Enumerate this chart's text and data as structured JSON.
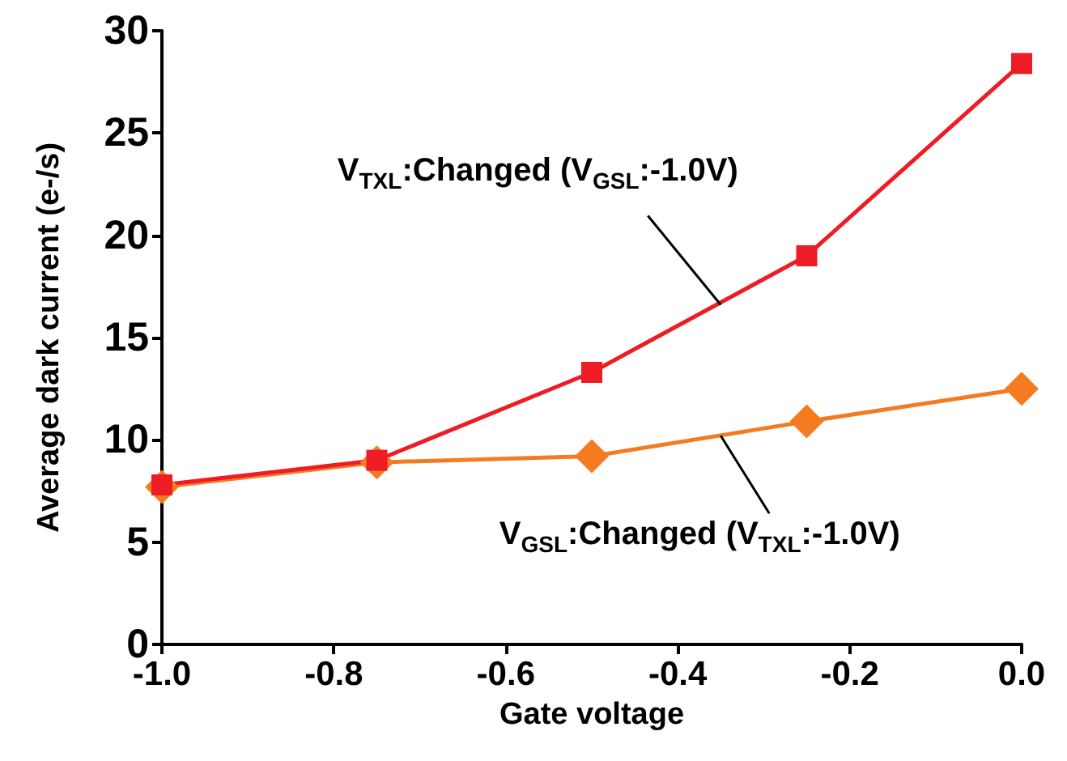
{
  "chart_data": {
    "type": "line",
    "xlabel": "Gate voltage",
    "ylabel": "Average dark current (e-/s)",
    "xlim": [
      -1.0,
      0.0
    ],
    "xticks": [
      {
        "value": -1.0,
        "label": "-1.0"
      },
      {
        "value": -0.8,
        "label": "-0.8"
      },
      {
        "value": -0.6,
        "label": "-0.6"
      },
      {
        "value": -0.4,
        "label": "-0.4"
      },
      {
        "value": -0.2,
        "label": "-0.2"
      },
      {
        "value": 0,
        "label": "0.0"
      }
    ],
    "ylim": [
      0,
      30
    ],
    "yticks": [
      0,
      5,
      10,
      15,
      20,
      25,
      30
    ],
    "series": [
      {
        "color": "#ee1c24",
        "marker": "square",
        "x": [
          -1.0,
          -0.75,
          -0.5,
          -0.25,
          0.0
        ],
        "values": [
          7.8,
          9.0,
          13.3,
          19.0,
          28.4
        ]
      },
      {
        "color": "#f47b20",
        "marker": "diamond",
        "x": [
          -1.0,
          -0.75,
          -0.5,
          -0.25,
          0.0
        ],
        "values": [
          7.7,
          8.9,
          9.2,
          10.9,
          12.5
        ]
      }
    ],
    "annotations": [
      {
        "text": "V$_{TXL}$:Changed (V$_{GSL}$:-1.0V)",
        "x": -0.35,
        "y": 16.6
      },
      {
        "text": "V$_{GSL}$:Changed (V$_{TXL}$:-1.0V)",
        "x": -0.35,
        "y": 10.2
      }
    ]
  }
}
